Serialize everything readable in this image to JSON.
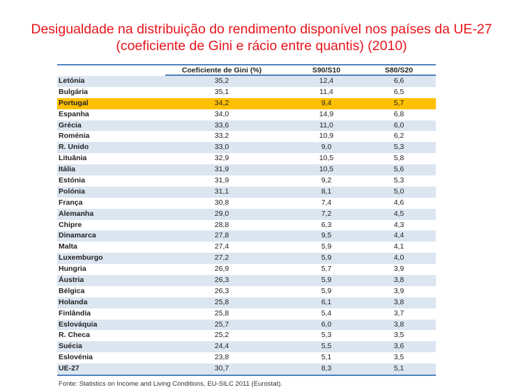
{
  "title": {
    "line1": "Desigualdade na distribuição do rendimento disponível nos países da UE-27",
    "line2": "(coeficiente de Gini e rácio entre quantis) (2010)"
  },
  "colors": {
    "title": "#e8141b",
    "band": "#dce6f1",
    "highlight": "#ffc000",
    "rule": "#4f81bd"
  },
  "table": {
    "columns": [
      "",
      "Coeficiente de Gini (%)",
      "S90/S10",
      "S80/S20"
    ],
    "highlight_row": "Portugal",
    "rows": [
      [
        "Letónia",
        "35,2",
        "12,4",
        "6,6"
      ],
      [
        "Bulgária",
        "35,1",
        "11,4",
        "6,5"
      ],
      [
        "Portugal",
        "34,2",
        "9,4",
        "5,7"
      ],
      [
        "Espanha",
        "34,0",
        "14,9",
        "6,8"
      ],
      [
        "Grécia",
        "33,6",
        "11,0",
        "6,0"
      ],
      [
        "Roménia",
        "33,2",
        "10,9",
        "6,2"
      ],
      [
        "R. Unido",
        "33,0",
        "9,0",
        "5,3"
      ],
      [
        "Lituânia",
        "32,9",
        "10,5",
        "5,8"
      ],
      [
        "Itália",
        "31,9",
        "10,5",
        "5,6"
      ],
      [
        "Estónia",
        "31,9",
        "9,2",
        "5,3"
      ],
      [
        "Polónia",
        "31,1",
        "8,1",
        "5,0"
      ],
      [
        "França",
        "30,8",
        "7,4",
        "4,6"
      ],
      [
        "Alemanha",
        "29,0",
        "7,2",
        "4,5"
      ],
      [
        "Chipre",
        "28,8",
        "6,3",
        "4,3"
      ],
      [
        "Dinamarca",
        "27,8",
        "9,5",
        "4,4"
      ],
      [
        "Malta",
        "27,4",
        "5,9",
        "4,1"
      ],
      [
        "Luxemburgo",
        "27,2",
        "5,9",
        "4,0"
      ],
      [
        "Hungria",
        "26,9",
        "5,7",
        "3,9"
      ],
      [
        "Áustria",
        "26,3",
        "5,9",
        "3,8"
      ],
      [
        "Bélgica",
        "26,3",
        "5,9",
        "3,9"
      ],
      [
        "Holanda",
        "25,8",
        "6,1",
        "3,8"
      ],
      [
        "Finlândia",
        "25,8",
        "5,4",
        "3,7"
      ],
      [
        "Eslováquia",
        "25,7",
        "6,0",
        "3,8"
      ],
      [
        "R. Checa",
        "25,2",
        "5,3",
        "3,5"
      ],
      [
        "Suécia",
        "24,4",
        "5,5",
        "3,6"
      ],
      [
        "Eslovénia",
        "23,8",
        "5,1",
        "3,5"
      ],
      [
        "UE-27",
        "30,7",
        "8,3",
        "5,1"
      ]
    ]
  },
  "footer": "Fonte: Statistics on Income and Living Conditions, EU-SILC 2011 (Eurostat)."
}
